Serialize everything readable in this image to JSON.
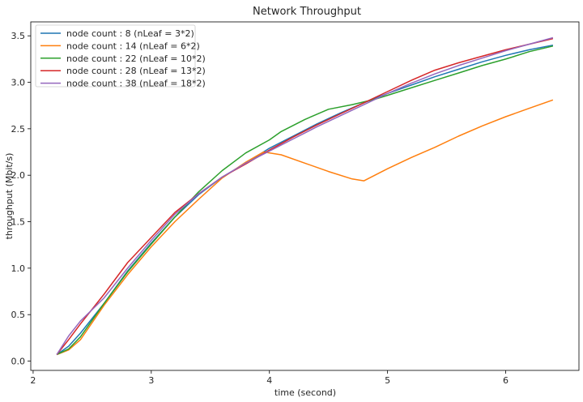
{
  "chart_data": {
    "type": "line",
    "title": "Network Throughput",
    "xlabel": "time (second)",
    "ylabel": "throughput (Mbit/s)",
    "xlim": [
      1.98,
      6.62
    ],
    "ylim": [
      -0.1,
      3.65
    ],
    "xticks": [
      2,
      3,
      4,
      5,
      6
    ],
    "xtick_labels": [
      "2",
      "3",
      "4",
      "5",
      "6"
    ],
    "yticks": [
      0.0,
      0.5,
      1.0,
      1.5,
      2.0,
      2.5,
      3.0,
      3.5
    ],
    "ytick_labels": [
      "0.0",
      "0.5",
      "1.0",
      "1.5",
      "2.0",
      "2.5",
      "3.0",
      "3.5"
    ],
    "grid": false,
    "legend_position": "upper-left",
    "series": [
      {
        "name": "node count : 8 (nLeaf = 3*2)",
        "color": "#1f77b4",
        "x": [
          2.2,
          2.3,
          2.4,
          2.6,
          2.8,
          3.0,
          3.2,
          3.4,
          3.6,
          3.8,
          4.0,
          4.2,
          4.4,
          4.6,
          4.8,
          5.0,
          5.2,
          5.4,
          5.6,
          5.8,
          6.0,
          6.2,
          6.4
        ],
        "y": [
          0.07,
          0.16,
          0.3,
          0.62,
          0.97,
          1.27,
          1.55,
          1.79,
          1.98,
          2.13,
          2.29,
          2.42,
          2.55,
          2.67,
          2.78,
          2.88,
          2.97,
          3.06,
          3.14,
          3.22,
          3.29,
          3.35,
          3.4
        ]
      },
      {
        "name": "node count : 14 (nLeaf = 6*2)",
        "color": "#ff7f0e",
        "x": [
          2.2,
          2.3,
          2.4,
          2.6,
          2.8,
          3.0,
          3.2,
          3.4,
          3.6,
          3.8,
          3.95,
          4.1,
          4.3,
          4.5,
          4.7,
          4.8,
          5.0,
          5.2,
          5.4,
          5.6,
          5.8,
          6.0,
          6.2,
          6.4
        ],
        "y": [
          0.07,
          0.12,
          0.23,
          0.6,
          0.93,
          1.23,
          1.5,
          1.74,
          1.97,
          2.14,
          2.25,
          2.22,
          2.13,
          2.04,
          1.96,
          1.94,
          2.07,
          2.19,
          2.3,
          2.42,
          2.53,
          2.63,
          2.72,
          2.81
        ]
      },
      {
        "name": "node count : 22 (nLeaf = 10*2)",
        "color": "#2ca02c",
        "x": [
          2.2,
          2.3,
          2.4,
          2.6,
          2.8,
          3.0,
          3.2,
          3.4,
          3.6,
          3.8,
          4.0,
          4.1,
          4.3,
          4.5,
          4.7,
          4.9,
          5.0,
          5.2,
          5.4,
          5.6,
          5.8,
          6.0,
          6.2,
          6.4
        ],
        "y": [
          0.07,
          0.13,
          0.26,
          0.62,
          0.96,
          1.26,
          1.55,
          1.82,
          2.05,
          2.24,
          2.38,
          2.47,
          2.6,
          2.71,
          2.76,
          2.82,
          2.86,
          2.94,
          3.02,
          3.1,
          3.18,
          3.25,
          3.33,
          3.39
        ]
      },
      {
        "name": "node count : 28 (nLeaf = 13*2)",
        "color": "#d62728",
        "x": [
          2.2,
          2.3,
          2.4,
          2.6,
          2.8,
          3.0,
          3.2,
          3.4,
          3.6,
          3.8,
          4.0,
          4.2,
          4.4,
          4.6,
          4.8,
          5.0,
          5.2,
          5.4,
          5.6,
          5.8,
          6.0,
          6.2,
          6.4
        ],
        "y": [
          0.07,
          0.23,
          0.4,
          0.72,
          1.06,
          1.33,
          1.6,
          1.8,
          1.98,
          2.12,
          2.27,
          2.41,
          2.54,
          2.66,
          2.78,
          2.9,
          3.02,
          3.13,
          3.21,
          3.28,
          3.35,
          3.41,
          3.47
        ]
      },
      {
        "name": "node count : 38 (nLeaf = 18*2)",
        "color": "#9467bd",
        "x": [
          2.2,
          2.3,
          2.4,
          2.6,
          2.8,
          3.0,
          3.2,
          3.4,
          3.6,
          3.8,
          4.0,
          4.2,
          4.4,
          4.6,
          4.8,
          5.0,
          5.2,
          5.4,
          5.6,
          5.8,
          6.0,
          6.2,
          6.4
        ],
        "y": [
          0.07,
          0.27,
          0.43,
          0.68,
          1.0,
          1.3,
          1.58,
          1.8,
          1.98,
          2.13,
          2.26,
          2.39,
          2.52,
          2.64,
          2.76,
          2.88,
          2.99,
          3.09,
          3.18,
          3.26,
          3.34,
          3.41,
          3.48
        ]
      }
    ]
  }
}
